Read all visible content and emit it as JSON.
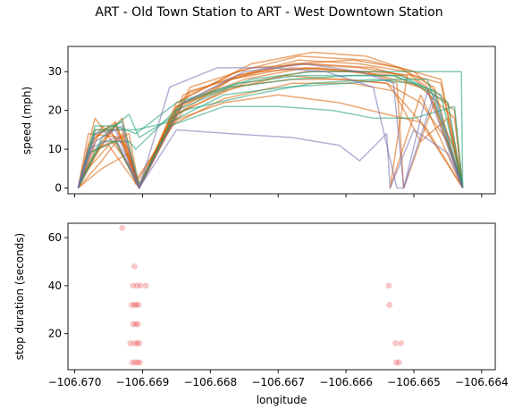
{
  "chart_data": [
    {
      "type": "line",
      "title": "ART - Old Town Station to ART - West Downtown Station",
      "xlabel": "",
      "ylabel": "speed (mph)",
      "xlim": [
        -106.6701,
        -106.6638
      ],
      "ylim": [
        -1.5,
        36.5
      ],
      "xticks": [
        -106.67,
        -106.669,
        -106.668,
        -106.667,
        -106.666,
        -106.665,
        -106.664
      ],
      "xtick_labels": [],
      "yticks": [
        0,
        10,
        20,
        30
      ],
      "ytick_labels": [
        "0",
        "10",
        "20",
        "30"
      ],
      "grid": false,
      "legend": "none",
      "colors": [
        "#1b9e77",
        "#d95f02",
        "#7570b3"
      ],
      "series": [
        {
          "color": "#d95f02",
          "x": [
            -106.66995,
            -106.6698,
            -106.6694,
            -106.66905,
            -106.6685,
            -106.6677,
            -106.6668,
            -106.6659,
            -106.6653,
            -106.6648,
            -106.6644,
            -106.66428
          ],
          "y": [
            0,
            6,
            16,
            1,
            21,
            28,
            31,
            30,
            29,
            25,
            10,
            0
          ]
        },
        {
          "color": "#d95f02",
          "x": [
            -106.66995,
            -106.6697,
            -106.6692,
            -106.66905,
            -106.6684,
            -106.6676,
            -106.6667,
            -106.6658,
            -106.6651,
            -106.6647,
            -106.66428
          ],
          "y": [
            0,
            10,
            14,
            0,
            24,
            29,
            33,
            32,
            30,
            26,
            0
          ]
        },
        {
          "color": "#d95f02",
          "x": [
            -106.66995,
            -106.6696,
            -106.6693,
            -106.66905,
            -106.6686,
            -106.6678,
            -106.6669,
            -106.6661,
            -106.6654,
            -106.6649,
            -106.6645,
            -106.66428
          ],
          "y": [
            0,
            12,
            18,
            0,
            18,
            25,
            29,
            28,
            27,
            22,
            12,
            0
          ]
        },
        {
          "color": "#d95f02",
          "x": [
            -106.66995,
            -106.6699,
            -106.6695,
            -106.66905,
            -106.6685,
            -106.6676,
            -106.6667,
            -106.6657,
            -106.665,
            -106.6645,
            -106.66428
          ],
          "y": [
            0,
            3,
            11,
            0,
            22,
            30,
            34,
            33,
            30,
            22,
            0
          ]
        },
        {
          "color": "#d95f02",
          "x": [
            -106.66995,
            -106.6697,
            -106.6694,
            -106.6691,
            -106.6684,
            -106.6675,
            -106.6666,
            -106.6656,
            -106.665,
            -106.6646,
            -106.66428
          ],
          "y": [
            0,
            8,
            17,
            2,
            20,
            27,
            30,
            30,
            29,
            27,
            0
          ]
        },
        {
          "color": "#d95f02",
          "x": [
            -106.66995,
            -106.6698,
            -106.6693,
            -106.66905,
            -106.6683,
            -106.6673,
            -106.6664,
            -106.6655,
            -106.6649,
            -106.6644,
            -106.66428
          ],
          "y": [
            0,
            14,
            13,
            0,
            25,
            30,
            31,
            29,
            26,
            18,
            0
          ]
        },
        {
          "color": "#d95f02",
          "x": [
            -106.66995,
            -106.6696,
            -106.6692,
            -106.66905,
            -106.6686,
            -106.6678,
            -106.6668,
            -106.6659,
            -106.6653,
            -106.6649,
            -106.6645,
            -106.66428
          ],
          "y": [
            0,
            5,
            9,
            0,
            16,
            23,
            27,
            27,
            25,
            12,
            18,
            0
          ]
        },
        {
          "color": "#d95f02",
          "x": [
            -106.66995,
            -106.6697,
            -106.6693,
            -106.66905,
            -106.6684,
            -106.6674,
            -106.6665,
            -106.6657,
            -106.6652,
            -106.6648,
            -106.66428
          ],
          "y": [
            0,
            15,
            15,
            0,
            23,
            32,
            35,
            34,
            31,
            26,
            0
          ]
        },
        {
          "color": "#d95f02",
          "x": [
            -106.66995,
            -106.6698,
            -106.6694,
            -106.66905,
            -106.6685,
            -106.6677,
            -106.6668,
            -106.666,
            -106.6654,
            -106.6648,
            -106.66428
          ],
          "y": [
            0,
            9,
            12,
            0,
            21,
            26,
            28,
            28,
            27,
            15,
            0
          ]
        },
        {
          "color": "#d95f02",
          "x": [
            -106.66995,
            -106.6697,
            -106.6692,
            -106.6691,
            -106.6685,
            -106.6676,
            -106.6667,
            -106.6658,
            -106.6651,
            -106.66535,
            -106.6649,
            -106.66428
          ],
          "y": [
            0,
            18,
            6,
            1,
            19,
            29,
            32,
            31,
            29,
            0,
            24,
            0
          ]
        },
        {
          "color": "#d95f02",
          "x": [
            -106.66995,
            -106.6696,
            -106.6693,
            -106.66905,
            -106.6683,
            -106.6674,
            -106.6665,
            -106.6656,
            -106.665,
            -106.6644,
            -106.66428
          ],
          "y": [
            0,
            7,
            14,
            0,
            26,
            31,
            32,
            31,
            28,
            20,
            0
          ]
        },
        {
          "color": "#d95f02",
          "x": [
            -106.66995,
            -106.6698,
            -106.6695,
            -106.66905,
            -106.6686,
            -106.6678,
            -106.667,
            -106.6661,
            -106.6654,
            -106.6649,
            -106.66428
          ],
          "y": [
            0,
            11,
            16,
            0,
            17,
            22,
            24,
            22,
            19,
            17,
            0
          ]
        },
        {
          "color": "#d95f02",
          "x": [
            -106.66995,
            -106.6697,
            -106.6694,
            -106.66905,
            -106.6684,
            -106.6675,
            -106.6666,
            -106.6657,
            -106.66525,
            -106.66515,
            -106.6647,
            -106.66428
          ],
          "y": [
            0,
            13,
            17,
            0,
            22,
            28,
            31,
            30,
            27,
            0,
            22,
            0
          ]
        },
        {
          "color": "#d95f02",
          "x": [
            -106.66995,
            -106.6696,
            -106.6692,
            -106.66905,
            -106.6685,
            -106.6677,
            -106.6668,
            -106.6659,
            -106.6652,
            -106.6646,
            -106.66428
          ],
          "y": [
            0,
            16,
            10,
            0,
            20,
            28,
            32,
            33,
            31,
            28,
            0
          ]
        },
        {
          "color": "#1b9e77",
          "x": [
            -106.66995,
            -106.6697,
            -106.6694,
            -106.6691,
            -106.6685,
            -106.6676,
            -106.6667,
            -106.6658,
            -106.6652,
            -106.6646,
            -106.66428
          ],
          "y": [
            0,
            16,
            16,
            14,
            22,
            27,
            29,
            29,
            29,
            24,
            0
          ]
        },
        {
          "color": "#1b9e77",
          "x": [
            -106.66995,
            -106.6696,
            -106.6692,
            -106.66905,
            -106.6684,
            -106.6674,
            -106.6665,
            -106.6656,
            -106.665,
            -106.6645,
            -106.66428
          ],
          "y": [
            0,
            13,
            19,
            13,
            20,
            24,
            27,
            28,
            27,
            22,
            0
          ]
        },
        {
          "color": "#1b9e77",
          "x": [
            -106.66995,
            -106.6697,
            -106.6693,
            -106.6691,
            -106.6686,
            -106.6678,
            -106.6669,
            -106.666,
            -106.6653,
            -106.6648,
            -106.66428
          ],
          "y": [
            0,
            15,
            15,
            15,
            17,
            24,
            26,
            27,
            28,
            28,
            0
          ]
        },
        {
          "color": "#1b9e77",
          "x": [
            -106.66995,
            -106.6698,
            -106.6694,
            -106.66905,
            -106.6685,
            -106.6677,
            -106.6668,
            -106.6659,
            -106.6653,
            -106.6647,
            -106.66428
          ],
          "y": [
            0,
            9,
            12,
            0,
            20,
            26,
            28,
            29,
            29,
            25,
            0
          ]
        },
        {
          "color": "#1b9e77",
          "x": [
            -106.66995,
            -106.6697,
            -106.6693,
            -106.66905,
            -106.6686,
            -106.6678,
            -106.667,
            -106.6662,
            -106.6656,
            -106.665,
            -106.6644,
            -106.66428
          ],
          "y": [
            0,
            14,
            17,
            1,
            16,
            21,
            21,
            20,
            18,
            18,
            21,
            0
          ]
        },
        {
          "color": "#1b9e77",
          "x": [
            -106.66995,
            -106.6696,
            -106.6692,
            -106.6691,
            -106.6684,
            -106.6674,
            -106.6665,
            -106.6656,
            -106.6651,
            -106.6643,
            -106.66428
          ],
          "y": [
            0,
            12,
            12,
            10,
            22,
            28,
            30,
            30,
            30,
            30,
            0
          ]
        },
        {
          "color": "#7570b3",
          "x": [
            -106.66995,
            -106.6697,
            -106.6694,
            -106.66905,
            -106.6685,
            -106.6677,
            -106.6668,
            -106.6661,
            -106.6658,
            -106.6654,
            -106.66535,
            -106.665,
            -106.6645,
            -106.66428
          ],
          "y": [
            0,
            14,
            15,
            0,
            15,
            14,
            13,
            11,
            7,
            14,
            0,
            15,
            9,
            0
          ]
        },
        {
          "color": "#7570b3",
          "x": [
            -106.66995,
            -106.6697,
            -106.6693,
            -106.66905,
            -106.6686,
            -106.6679,
            -106.6671,
            -106.6663,
            -106.6656,
            -106.66525,
            -106.66515,
            -106.6647,
            -106.66428
          ],
          "y": [
            0,
            12,
            16,
            0,
            26,
            31,
            31,
            30,
            26,
            0,
            0,
            24,
            0
          ]
        },
        {
          "color": "#7570b3",
          "x": [
            -106.66995,
            -106.6698,
            -106.6694,
            -106.66905,
            -106.6684,
            -106.6675,
            -106.6666,
            -106.6658,
            -106.6653,
            -106.66515,
            -106.6648,
            -106.66428
          ],
          "y": [
            0,
            10,
            13,
            0,
            22,
            30,
            32,
            30,
            27,
            0,
            25,
            0
          ]
        }
      ]
    },
    {
      "type": "scatter",
      "title": "",
      "xlabel": "longitude",
      "ylabel": "stop duration (seconds)",
      "xlim": [
        -106.6701,
        -106.6638
      ],
      "ylim": [
        5,
        66
      ],
      "xticks": [
        -106.67,
        -106.669,
        -106.668,
        -106.667,
        -106.666,
        -106.665,
        -106.664
      ],
      "xtick_labels": [
        "−106.670",
        "−106.669",
        "−106.668",
        "−106.667",
        "−106.666",
        "−106.665",
        "−106.664"
      ],
      "yticks": [
        20,
        40,
        60
      ],
      "ytick_labels": [
        "20",
        "40",
        "60"
      ],
      "grid": false,
      "legend": "none",
      "colors": [
        "#e8444a"
      ],
      "points": [
        {
          "x": -106.6693,
          "y": 64
        },
        {
          "x": -106.66912,
          "y": 48
        },
        {
          "x": -106.66914,
          "y": 40
        },
        {
          "x": -106.66908,
          "y": 40
        },
        {
          "x": -106.66903,
          "y": 40
        },
        {
          "x": -106.66895,
          "y": 40
        },
        {
          "x": -106.66916,
          "y": 32
        },
        {
          "x": -106.66912,
          "y": 32
        },
        {
          "x": -106.66909,
          "y": 32
        },
        {
          "x": -106.66906,
          "y": 32
        },
        {
          "x": -106.66914,
          "y": 24
        },
        {
          "x": -106.6691,
          "y": 24
        },
        {
          "x": -106.66907,
          "y": 24
        },
        {
          "x": -106.66918,
          "y": 16
        },
        {
          "x": -106.66912,
          "y": 16
        },
        {
          "x": -106.66908,
          "y": 16
        },
        {
          "x": -106.66905,
          "y": 16
        },
        {
          "x": -106.66915,
          "y": 8
        },
        {
          "x": -106.66911,
          "y": 8
        },
        {
          "x": -106.66907,
          "y": 8
        },
        {
          "x": -106.66904,
          "y": 8
        },
        {
          "x": -106.66537,
          "y": 40
        },
        {
          "x": -106.66536,
          "y": 32
        },
        {
          "x": -106.66527,
          "y": 16
        },
        {
          "x": -106.66519,
          "y": 16
        },
        {
          "x": -106.66526,
          "y": 8
        },
        {
          "x": -106.66522,
          "y": 8
        }
      ]
    }
  ]
}
